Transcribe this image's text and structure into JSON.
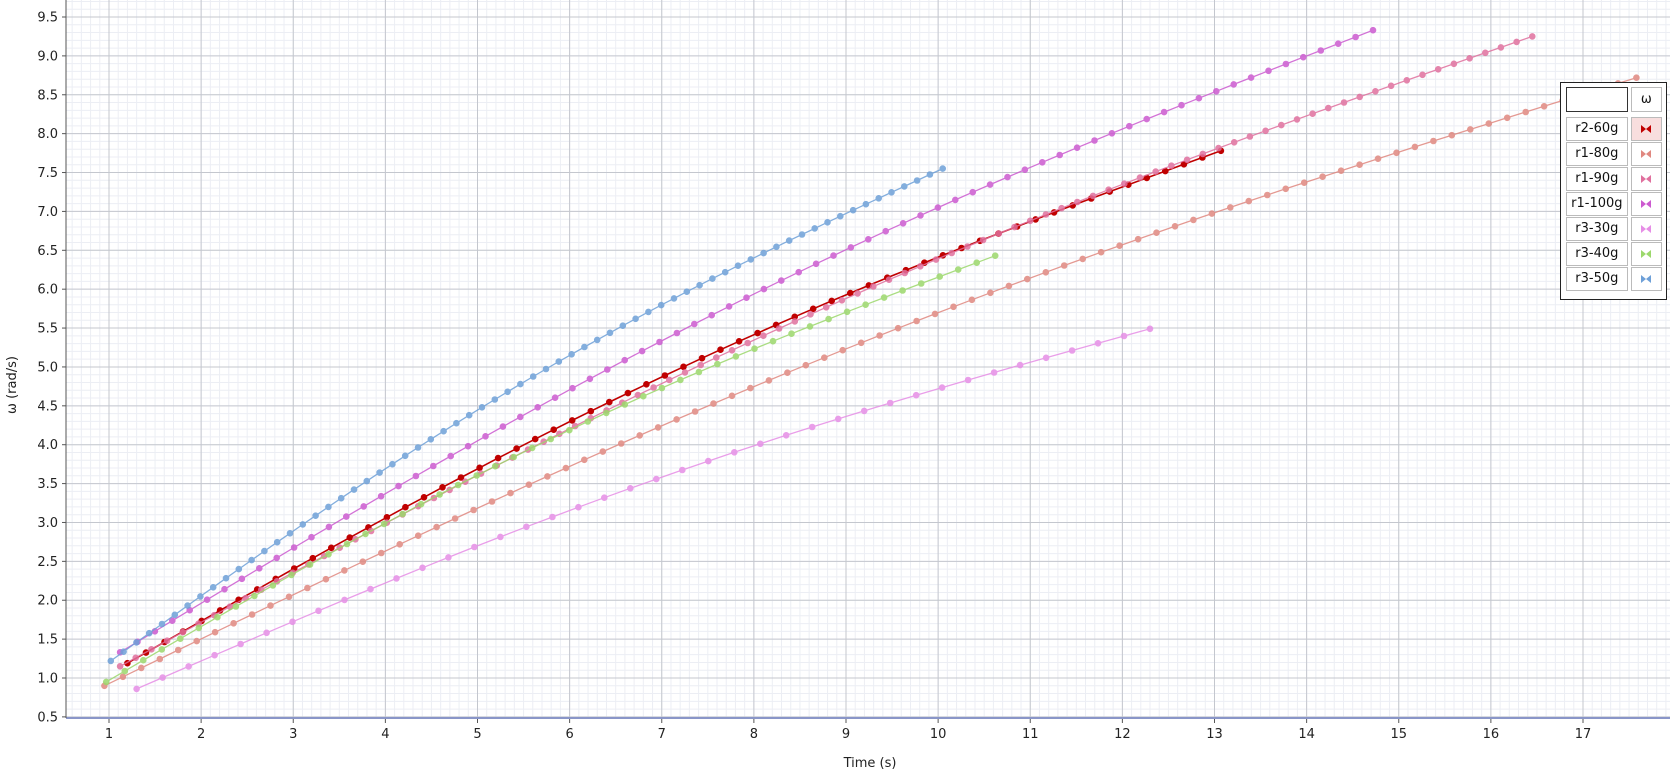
{
  "chart_data": {
    "type": "line",
    "title": "",
    "xlabel": "Time (s)",
    "ylabel": "ω (rad/s)",
    "xlim": [
      0.6,
      17.95
    ],
    "ylim": [
      0.4,
      9.7
    ],
    "x_ticks": [
      "1",
      "2",
      "3",
      "4",
      "5",
      "6",
      "7",
      "8",
      "9",
      "10",
      "11",
      "12",
      "13",
      "14",
      "15",
      "16",
      "17"
    ],
    "y_ticks": [
      "0.5",
      "1.0",
      "1.5",
      "2.0",
      "2.5",
      "3.0",
      "3.5",
      "4.0",
      "4.5",
      "5.0",
      "5.5",
      "6.0",
      "6.5",
      "7.0",
      "7.5",
      "8.0",
      "8.5",
      "9.0",
      "9.5"
    ],
    "grid": true,
    "legend": {
      "header": "ω",
      "position": "top-right",
      "selected": "r2-60g"
    },
    "series": [
      {
        "name": "r2-60g",
        "color": "#c00000",
        "alpha": 1.0,
        "start": [
          1.2,
          1.19
        ],
        "end": [
          13.07,
          7.78
        ],
        "step": 0.2
      },
      {
        "name": "r1-80g",
        "color": "#e08880",
        "alpha": 0.85,
        "start": [
          0.95,
          0.9
        ],
        "end": [
          17.58,
          8.72
        ],
        "step": 0.2
      },
      {
        "name": "r1-90g",
        "color": "#e0709e",
        "alpha": 0.85,
        "start": [
          1.12,
          1.15
        ],
        "end": [
          16.45,
          9.25
        ],
        "step": 0.17
      },
      {
        "name": "r1-100g",
        "color": "#cc5ad0",
        "alpha": 0.85,
        "start": [
          1.12,
          1.33
        ],
        "end": [
          14.72,
          9.33
        ],
        "step": 0.19
      },
      {
        "name": "r3-30g",
        "color": "#e68ee6",
        "alpha": 0.85,
        "start": [
          1.3,
          0.86
        ],
        "end": [
          12.3,
          5.49
        ],
        "step": 0.28
      },
      {
        "name": "r3-40g",
        "color": "#9cd86c",
        "alpha": 0.85,
        "start": [
          0.97,
          0.95
        ],
        "end": [
          10.62,
          6.43
        ],
        "step": 0.2
      },
      {
        "name": "r3-50g",
        "color": "#6ea0d8",
        "alpha": 0.85,
        "start": [
          1.02,
          1.22
        ],
        "end": [
          10.05,
          7.55
        ],
        "step": 0.14
      }
    ]
  }
}
